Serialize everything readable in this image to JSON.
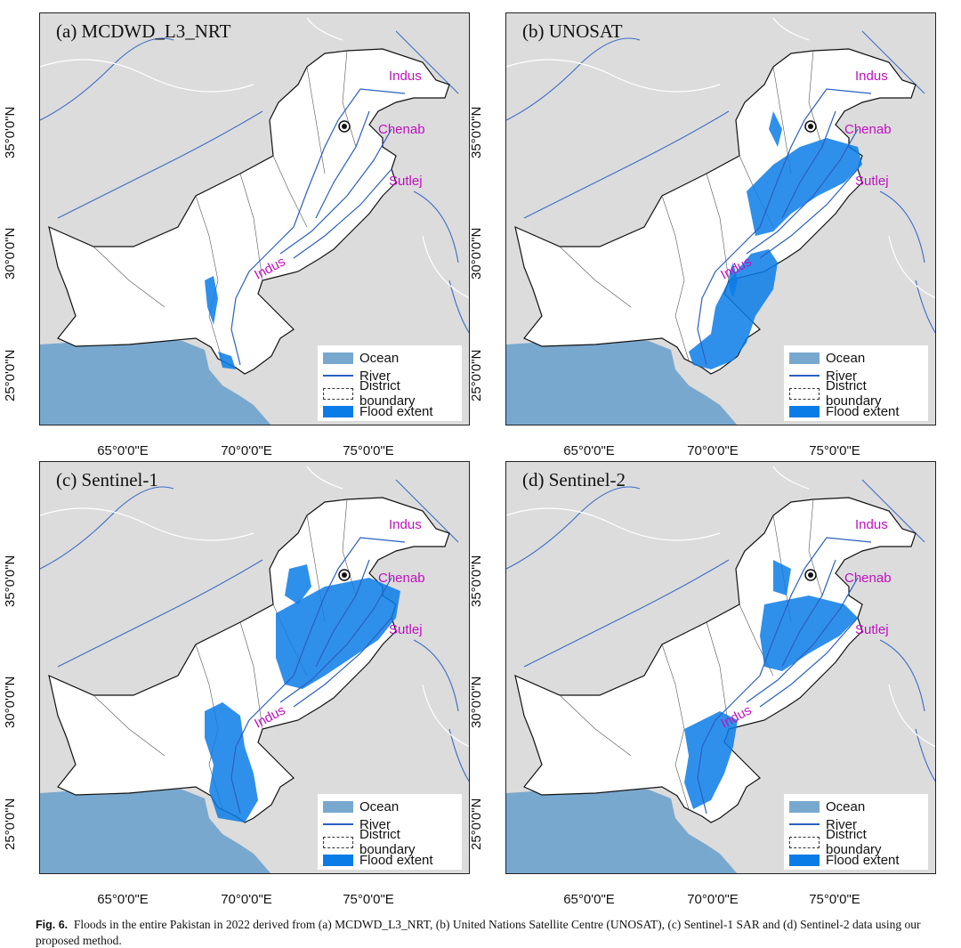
{
  "panels": [
    {
      "title": "(a) MCDWD_L3_NRT",
      "flood": "a"
    },
    {
      "title": "(b) UNOSAT",
      "flood": "b"
    },
    {
      "title": "(c) Sentinel-1",
      "flood": "c"
    },
    {
      "title": "(d) Sentinel-2",
      "flood": "d"
    }
  ],
  "rivers": {
    "indus_north": "Indus",
    "chenab": "Chenab",
    "sutlej": "Sutlej",
    "indus_south": "Indus"
  },
  "legend": {
    "ocean": "Ocean",
    "river": "River",
    "district": "District boundary",
    "flood": "Flood extent"
  },
  "axes": {
    "lat": [
      "35°0'0\"N",
      "30°0'0\"N",
      "25°0'0\"N"
    ],
    "lon": [
      "65°0'0\"E",
      "70°0'0\"E",
      "75°0'0\"E"
    ]
  },
  "colors": {
    "ocean": "#79a8cf",
    "flood": "#0a7ce8",
    "land": "#dcdcdc",
    "country": "#ffffff",
    "river": "#2b5fbf",
    "label": "#c010c0"
  },
  "caption": {
    "label": "Fig. 6.",
    "text": "Floods in the entire Pakistan in 2022 derived from (a) MCDWD_L3_NRT, (b) United Nations Satellite Centre (UNOSAT), (c) Sentinel-1 SAR and (d) Sentinel-2 data using our proposed method."
  }
}
